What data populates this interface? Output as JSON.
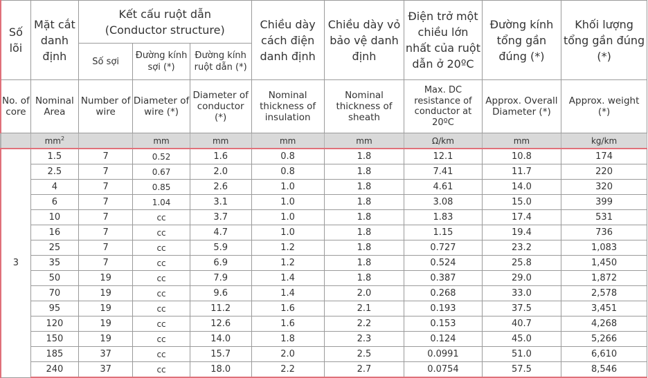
{
  "headers": {
    "so_loi": "Số lõi",
    "mat_cat": "Mặt cắt danh định",
    "ket_cau": "Kết cấu ruột dẫn",
    "ket_cau_en": "(Conductor structure)",
    "so_soi": "Số sợi",
    "dk_soi": "Đường kính sợi (*)",
    "dk_ruot": "Đường kính ruột dẫn (*)",
    "day_cach_dien": "Chiều dày cách điện danh định",
    "day_vo": "Chiều dày vỏ bảo vệ danh định",
    "dien_tro": "Điện trở một chiều lớn nhất của ruột dẫn ở 20ºC",
    "dk_tong": "Đường kính tổng gần đúng (*)",
    "kl_tong": "Khối lượng tổng gần đúng (*)"
  },
  "headers_en": {
    "no_core": "No. of core",
    "nominal_area": "Nominal Area",
    "number_wire": "Number of wire",
    "dia_wire": "Diameter of wire (*)",
    "dia_conductor": "Diameter of conductor (*)",
    "thick_insulation": "Nominal thickness of insulation",
    "thick_sheath": "Nominal thickness of sheath",
    "max_dc": "Max. DC resistance of conductor at 20ºC",
    "overall_dia": "Approx. Overall Diameter (*)",
    "weight": "Approx. weight (*)"
  },
  "units": {
    "area": "mm",
    "area_sup": "2",
    "wire": "",
    "dia_wire": "mm",
    "dia_cond": "mm",
    "insul": "mm",
    "sheath": "mm",
    "resist": "Ω/km",
    "overall": "mm",
    "weight": "kg/km"
  },
  "core_value": "3",
  "rows": [
    [
      "1.5",
      "7",
      "0.52",
      "1.6",
      "0.8",
      "1.8",
      "12.1",
      "10.8",
      "174"
    ],
    [
      "2.5",
      "7",
      "0.67",
      "2.0",
      "0.8",
      "1.8",
      "7.41",
      "11.7",
      "220"
    ],
    [
      "4",
      "7",
      "0.85",
      "2.6",
      "1.0",
      "1.8",
      "4.61",
      "14.0",
      "320"
    ],
    [
      "6",
      "7",
      "1.04",
      "3.1",
      "1.0",
      "1.8",
      "3.08",
      "15.0",
      "399"
    ],
    [
      "10",
      "7",
      "cc",
      "3.7",
      "1.0",
      "1.8",
      "1.83",
      "17.4",
      "531"
    ],
    [
      "16",
      "7",
      "cc",
      "4.7",
      "1.0",
      "1.8",
      "1.15",
      "19.4",
      "736"
    ],
    [
      "25",
      "7",
      "cc",
      "5.9",
      "1.2",
      "1.8",
      "0.727",
      "23.2",
      "1,083"
    ],
    [
      "35",
      "7",
      "cc",
      "6.9",
      "1.2",
      "1.8",
      "0.524",
      "25.8",
      "1,450"
    ],
    [
      "50",
      "19",
      "cc",
      "7.9",
      "1.4",
      "1.8",
      "0.387",
      "29.0",
      "1,872"
    ],
    [
      "70",
      "19",
      "cc",
      "9.6",
      "1.4",
      "2.0",
      "0.268",
      "33.0",
      "2,578"
    ],
    [
      "95",
      "19",
      "cc",
      "11.2",
      "1.6",
      "2.1",
      "0.193",
      "37.5",
      "3,451"
    ],
    [
      "120",
      "19",
      "cc",
      "12.6",
      "1.6",
      "2.2",
      "0.153",
      "40.7",
      "4,268"
    ],
    [
      "150",
      "19",
      "cc",
      "14.0",
      "1.8",
      "2.3",
      "0.124",
      "45.0",
      "5,266"
    ],
    [
      "185",
      "37",
      "cc",
      "15.7",
      "2.0",
      "2.5",
      "0.0991",
      "51.0",
      "6,610"
    ],
    [
      "240",
      "37",
      "cc",
      "18.0",
      "2.2",
      "2.7",
      "0.0754",
      "57.5",
      "8,546"
    ]
  ]
}
